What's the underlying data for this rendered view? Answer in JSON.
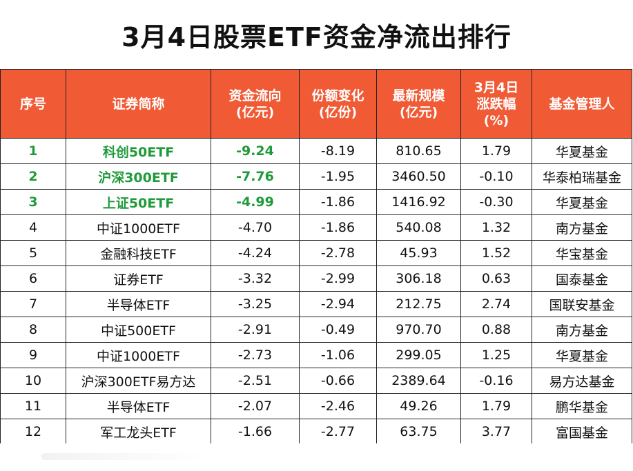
{
  "title": "3月4日股票ETF资金净流出排行",
  "headers": {
    "rank": "序号",
    "name": "证券简称",
    "flow_l1": "资金流向",
    "flow_l2": "(亿元)",
    "share_l1": "份额变化",
    "share_l2": "(亿份)",
    "scale_l1": "最新规模",
    "scale_l2": "(亿元)",
    "pct_l1": "3月4日",
    "pct_l2": "涨跌幅",
    "pct_l3": "(%)",
    "manager": "基金管理人"
  },
  "accent_color": "#f05a35",
  "highlight_color": "#1f9a3a",
  "rows": [
    {
      "rank": "1",
      "name": "科创50ETF",
      "flow": "-9.24",
      "share": "-8.19",
      "scale": "810.65",
      "pct": "1.79",
      "manager": "华夏基金"
    },
    {
      "rank": "2",
      "name": "沪深300ETF",
      "flow": "-7.76",
      "share": "-1.95",
      "scale": "3460.50",
      "pct": "-0.10",
      "manager": "华泰柏瑞基金"
    },
    {
      "rank": "3",
      "name": "上证50ETF",
      "flow": "-4.99",
      "share": "-1.86",
      "scale": "1416.92",
      "pct": "-0.30",
      "manager": "华夏基金"
    },
    {
      "rank": "4",
      "name": "中证1000ETF",
      "flow": "-4.70",
      "share": "-1.86",
      "scale": "540.08",
      "pct": "1.32",
      "manager": "南方基金"
    },
    {
      "rank": "5",
      "name": "金融科技ETF",
      "flow": "-4.24",
      "share": "-2.78",
      "scale": "45.93",
      "pct": "1.52",
      "manager": "华宝基金"
    },
    {
      "rank": "6",
      "name": "证券ETF",
      "flow": "-3.32",
      "share": "-2.99",
      "scale": "306.18",
      "pct": "0.63",
      "manager": "国泰基金"
    },
    {
      "rank": "7",
      "name": "半导体ETF",
      "flow": "-3.25",
      "share": "-2.94",
      "scale": "212.75",
      "pct": "2.74",
      "manager": "国联安基金"
    },
    {
      "rank": "8",
      "name": "中证500ETF",
      "flow": "-2.91",
      "share": "-0.49",
      "scale": "970.70",
      "pct": "0.88",
      "manager": "南方基金"
    },
    {
      "rank": "9",
      "name": "中证1000ETF",
      "flow": "-2.73",
      "share": "-1.06",
      "scale": "299.05",
      "pct": "1.25",
      "manager": "华夏基金"
    },
    {
      "rank": "10",
      "name": "沪深300ETF易方达",
      "flow": "-2.51",
      "share": "-0.66",
      "scale": "2389.64",
      "pct": "-0.16",
      "manager": "易方达基金"
    },
    {
      "rank": "11",
      "name": "半导体ETF",
      "flow": "-2.07",
      "share": "-2.46",
      "scale": "49.26",
      "pct": "1.79",
      "manager": "鹏华基金"
    },
    {
      "rank": "12",
      "name": "军工龙头ETF",
      "flow": "-1.66",
      "share": "-2.77",
      "scale": "63.75",
      "pct": "3.77",
      "manager": "富国基金"
    }
  ]
}
